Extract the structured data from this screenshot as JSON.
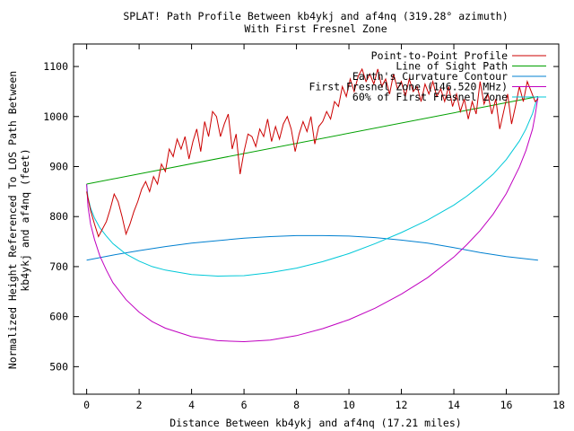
{
  "title_line1": "SPLAT! Path Profile Between kb4ykj and af4nq (319.28° azimuth)",
  "title_line2": "With First Fresnel Zone",
  "chart_data": {
    "type": "line",
    "title": "SPLAT! Path Profile Between kb4ykj and af4nq (319.28° azimuth) With First Fresnel Zone",
    "xlabel": "Distance Between kb4ykj and af4nq (17.21 miles)",
    "ylabel_line1": "Normalized Height Referenced To LOS Path Between",
    "ylabel_line2": "kb4ykj and af4nq (feet)",
    "xlim": [
      -0.5,
      18
    ],
    "ylim": [
      445,
      1145
    ],
    "x_ticks": [
      0,
      2,
      4,
      6,
      8,
      10,
      12,
      14,
      16,
      18
    ],
    "y_ticks": [
      500,
      600,
      700,
      800,
      900,
      1000,
      1100
    ],
    "legend_position": "top-right",
    "grid": false,
    "series": [
      {
        "name": "Point-to-Point Profile",
        "color": "#cc0000",
        "x": [
          0,
          0.15,
          0.3,
          0.45,
          0.6,
          0.75,
          0.9,
          1.05,
          1.2,
          1.35,
          1.5,
          1.65,
          1.8,
          1.95,
          2.1,
          2.25,
          2.4,
          2.55,
          2.7,
          2.85,
          3.0,
          3.15,
          3.3,
          3.45,
          3.6,
          3.75,
          3.9,
          4.05,
          4.2,
          4.35,
          4.5,
          4.65,
          4.8,
          4.95,
          5.1,
          5.25,
          5.4,
          5.55,
          5.7,
          5.85,
          6.0,
          6.15,
          6.3,
          6.45,
          6.6,
          6.75,
          6.9,
          7.05,
          7.2,
          7.35,
          7.5,
          7.65,
          7.8,
          7.95,
          8.1,
          8.25,
          8.4,
          8.55,
          8.7,
          8.85,
          9.0,
          9.15,
          9.3,
          9.45,
          9.6,
          9.75,
          9.9,
          10.05,
          10.2,
          10.35,
          10.5,
          10.65,
          10.8,
          10.95,
          11.1,
          11.25,
          11.4,
          11.55,
          11.7,
          11.85,
          12.0,
          12.15,
          12.3,
          12.45,
          12.6,
          12.75,
          12.9,
          13.05,
          13.2,
          13.35,
          13.5,
          13.65,
          13.8,
          13.95,
          14.1,
          14.25,
          14.4,
          14.55,
          14.7,
          14.85,
          15.0,
          15.15,
          15.3,
          15.45,
          15.6,
          15.75,
          15.9,
          16.05,
          16.2,
          16.35,
          16.5,
          16.65,
          16.8,
          16.95,
          17.1,
          17.21
        ],
        "y": [
          850,
          812,
          785,
          760,
          775,
          790,
          815,
          845,
          830,
          800,
          765,
          785,
          810,
          830,
          855,
          870,
          850,
          880,
          865,
          905,
          890,
          935,
          920,
          955,
          935,
          960,
          915,
          950,
          975,
          930,
          990,
          960,
          1010,
          1000,
          960,
          985,
          1005,
          935,
          965,
          885,
          930,
          965,
          960,
          940,
          975,
          960,
          995,
          950,
          980,
          955,
          985,
          1000,
          975,
          930,
          965,
          990,
          970,
          1000,
          945,
          980,
          990,
          1010,
          995,
          1030,
          1020,
          1060,
          1040,
          1075,
          1050,
          1080,
          1095,
          1070,
          1085,
          1065,
          1095,
          1060,
          1075,
          1045,
          1085,
          1055,
          1070,
          1040,
          1075,
          1050,
          1060,
          1030,
          1065,
          1045,
          1070,
          1040,
          1055,
          1030,
          1060,
          1020,
          1045,
          1010,
          1035,
          995,
          1030,
          1005,
          1070,
          1025,
          1045,
          1005,
          1035,
          975,
          1010,
          1045,
          985,
          1020,
          1060,
          1030,
          1070,
          1050,
          1030,
          1035
        ]
      },
      {
        "name": "Line of Sight Path",
        "color": "#00a000",
        "x": [
          0,
          17.21
        ],
        "y": [
          865,
          1040
        ]
      },
      {
        "name": "Earth's Curvature Contour",
        "color": "#0080d0",
        "x": [
          0,
          1,
          2,
          3,
          4,
          5,
          6,
          7,
          8,
          9,
          10,
          11,
          12,
          13,
          14,
          15,
          16,
          17.21
        ],
        "y": [
          713,
          723,
          732,
          740,
          747,
          752,
          757,
          760,
          762,
          762,
          761,
          758,
          753,
          747,
          738,
          728,
          720,
          713
        ]
      },
      {
        "name": "First Fresnel Zone (146.520 MHz)",
        "color": "#c000c0",
        "x": [
          0,
          0.05,
          0.15,
          0.3,
          0.5,
          0.75,
          1.0,
          1.5,
          2.0,
          2.5,
          3.0,
          4.0,
          5.0,
          6.0,
          7.0,
          8.0,
          9.0,
          10.0,
          11.0,
          12.0,
          13.0,
          14.0,
          14.5,
          15.0,
          15.5,
          16.0,
          16.5,
          16.75,
          17.0,
          17.1,
          17.21
        ],
        "y": [
          865,
          820,
          785,
          754,
          722,
          693,
          668,
          634,
          609,
          590,
          577,
          560,
          552,
          550,
          553,
          562,
          576,
          594,
          617,
          645,
          678,
          719,
          744,
          772,
          805,
          846,
          899,
          932,
          975,
          1003,
          1040
        ]
      },
      {
        "name": "60% of First Fresnel Zone",
        "color": "#00c8d8",
        "x": [
          0,
          0.05,
          0.15,
          0.3,
          0.5,
          0.75,
          1.0,
          1.5,
          2.0,
          2.5,
          3.0,
          4.0,
          5.0,
          6.0,
          7.0,
          8.0,
          9.0,
          10.0,
          11.0,
          12.0,
          13.0,
          14.0,
          14.5,
          15.0,
          15.5,
          16.0,
          16.5,
          16.75,
          17.0,
          17.1,
          17.21
        ],
        "y": [
          865,
          838,
          817,
          797,
          778,
          761,
          746,
          725,
          711,
          700,
          693,
          684,
          681,
          682,
          688,
          697,
          710,
          726,
          746,
          768,
          793,
          823,
          841,
          862,
          885,
          914,
          951,
          975,
          1006,
          1024,
          1040
        ]
      }
    ]
  }
}
